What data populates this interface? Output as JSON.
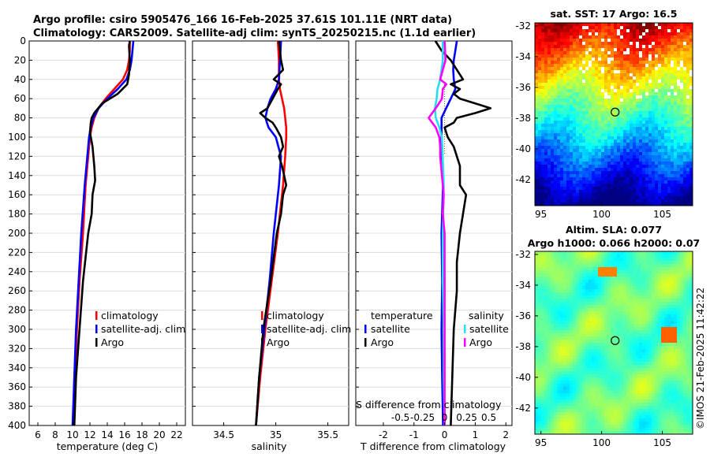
{
  "header": {
    "title_line1": "Argo profile: csiro 5905476_166 16-Feb-2025 37.61S 101.11E (NRT data)",
    "title_line2": "Climatology: CARS2009. Satellite-adj clim: synTS_20250215.nc (1.1d earlier)"
  },
  "copyright": "©IMOS 21-Feb-2025 11:42:22",
  "colors": {
    "red": "#ff0000",
    "blue": "#0000ff",
    "black": "#000000",
    "cyan": "#22e0f0",
    "magenta": "#ff00ff"
  },
  "chart_data": [
    {
      "type": "line",
      "name": "temperature",
      "xlabel": "temperature (deg C)",
      "ylabel": "",
      "xlim": [
        5,
        23
      ],
      "ylim": [
        0,
        400
      ],
      "xticks": [
        "6",
        "8",
        "10",
        "12",
        "14",
        "16",
        "18",
        "20",
        "22"
      ],
      "xtick_values": [
        6,
        8,
        10,
        12,
        14,
        16,
        18,
        20,
        22
      ],
      "yticks": [
        "0",
        "20",
        "40",
        "60",
        "80",
        "100",
        "120",
        "140",
        "160",
        "180",
        "200",
        "220",
        "240",
        "260",
        "280",
        "300",
        "320",
        "340",
        "360",
        "380",
        "400"
      ],
      "legend": [
        "climatology",
        "satellite-adj. clim",
        "Argo"
      ],
      "series": [
        {
          "name": "climatology",
          "color": "#ff0000",
          "depth": [
            0,
            10,
            20,
            30,
            40,
            50,
            60,
            70,
            80,
            90,
            100,
            150,
            200,
            250,
            300,
            350,
            400
          ],
          "values": [
            16.6,
            16.6,
            16.5,
            16.3,
            15.8,
            14.8,
            13.8,
            13.0,
            12.5,
            12.2,
            12.0,
            11.5,
            11.2,
            10.8,
            10.5,
            10.3,
            10.1
          ]
        },
        {
          "name": "satellite-adj. clim",
          "color": "#0000ff",
          "depth": [
            0,
            10,
            20,
            30,
            40,
            50,
            60,
            70,
            80,
            90,
            100,
            150,
            200,
            250,
            300,
            350,
            400
          ],
          "values": [
            17.0,
            16.9,
            16.8,
            16.6,
            16.2,
            15.2,
            14.0,
            13.0,
            12.4,
            12.1,
            11.9,
            11.4,
            11.0,
            10.7,
            10.4,
            10.2,
            10.0
          ]
        },
        {
          "name": "Argo",
          "color": "#000000",
          "depth": [
            0,
            5,
            20,
            35,
            45,
            55,
            65,
            75,
            80,
            85,
            95,
            110,
            130,
            145,
            160,
            180,
            200,
            250,
            300,
            350,
            400
          ],
          "values": [
            16.6,
            16.5,
            16.6,
            16.5,
            16.3,
            15.2,
            13.4,
            12.5,
            12.2,
            12.1,
            12.0,
            12.3,
            12.5,
            12.6,
            12.3,
            12.2,
            11.8,
            11.2,
            10.8,
            10.4,
            10.2
          ]
        }
      ]
    },
    {
      "type": "line",
      "name": "salinity",
      "xlabel": "salinity",
      "xlim": [
        34.2,
        35.7
      ],
      "ylim": [
        0,
        400
      ],
      "xticks": [
        "34.5",
        "35",
        "35.5"
      ],
      "xtick_values": [
        34.5,
        35,
        35.5
      ],
      "legend": [
        "climatology",
        "satellite-adj. clim",
        "Argo"
      ],
      "series": [
        {
          "name": "climatology",
          "color": "#ff0000",
          "depth": [
            0,
            20,
            40,
            50,
            60,
            70,
            80,
            90,
            100,
            120,
            150,
            200,
            250,
            300,
            350,
            400
          ],
          "values": [
            35.02,
            35.03,
            35.03,
            35.04,
            35.06,
            35.08,
            35.09,
            35.1,
            35.1,
            35.09,
            35.07,
            35.02,
            34.96,
            34.9,
            34.85,
            34.81
          ]
        },
        {
          "name": "satellite-adj. clim",
          "color": "#0000ff",
          "depth": [
            0,
            20,
            40,
            50,
            60,
            70,
            80,
            90,
            100,
            120,
            150,
            200,
            250,
            300,
            350,
            400
          ],
          "values": [
            35.05,
            35.04,
            35.03,
            35.0,
            34.95,
            34.92,
            34.9,
            34.93,
            35.0,
            35.05,
            35.03,
            34.98,
            34.94,
            34.89,
            34.84,
            34.81
          ]
        },
        {
          "name": "Argo",
          "color": "#000000",
          "depth": [
            0,
            10,
            20,
            30,
            40,
            45,
            50,
            60,
            70,
            75,
            80,
            85,
            90,
            100,
            110,
            120,
            130,
            140,
            150,
            160,
            180,
            200,
            250,
            300,
            350,
            400
          ],
          "values": [
            35.03,
            35.04,
            35.05,
            35.07,
            34.98,
            35.05,
            35.02,
            34.97,
            34.92,
            34.85,
            34.9,
            34.97,
            35.0,
            35.05,
            35.07,
            35.03,
            35.06,
            35.08,
            35.1,
            35.07,
            35.05,
            35.01,
            34.95,
            34.88,
            34.84,
            34.81
          ]
        }
      ]
    },
    {
      "type": "line",
      "name": "difference",
      "xlabel": "T difference from climatology",
      "xlabel_top": "S difference from climatology",
      "xlim": [
        -2.9,
        2.2
      ],
      "ylim": [
        0,
        400
      ],
      "xticks": [
        "-2",
        "-1",
        "0",
        "1",
        "2"
      ],
      "xtick_values": [
        -2,
        -1,
        0,
        1,
        2
      ],
      "sticks": [
        "-0.5",
        "-0.25",
        "0",
        "0.25",
        "0.5"
      ],
      "legend_temperature": "temperature",
      "legend_salinity": "salinity",
      "legend": [
        "satellite",
        "Argo",
        "satellite",
        "Argo"
      ],
      "series": [
        {
          "name": "T satellite",
          "color": "#0000ff",
          "depth": [
            0,
            10,
            20,
            30,
            40,
            50,
            60,
            70,
            80,
            100,
            150,
            200,
            250,
            300,
            350,
            400
          ],
          "values": [
            0.4,
            0.35,
            0.3,
            0.28,
            0.3,
            0.35,
            0.2,
            0.05,
            -0.1,
            -0.1,
            -0.05,
            -0.1,
            -0.08,
            -0.1,
            -0.08,
            -0.05
          ]
        },
        {
          "name": "T Argo",
          "color": "#000000",
          "depth": [
            0,
            10,
            20,
            30,
            40,
            45,
            50,
            55,
            60,
            65,
            70,
            75,
            80,
            85,
            90,
            100,
            110,
            130,
            150,
            160,
            180,
            200,
            230,
            260,
            300,
            350,
            400
          ],
          "values": [
            -0.3,
            -0.1,
            0.2,
            0.4,
            0.6,
            0.2,
            0.5,
            0.3,
            0.5,
            1.0,
            1.5,
            1.0,
            0.4,
            0.3,
            0.0,
            0.1,
            0.3,
            0.5,
            0.5,
            0.7,
            0.6,
            0.5,
            0.4,
            0.4,
            0.3,
            0.25,
            0.2
          ]
        },
        {
          "name": "S satellite",
          "color": "#22e0f0",
          "depth": [
            0,
            20,
            40,
            50,
            60,
            70,
            80,
            90,
            100,
            150,
            200,
            250,
            300,
            350,
            400
          ],
          "values": [
            -0.02,
            -0.02,
            -0.05,
            -0.08,
            -0.09,
            -0.11,
            -0.1,
            -0.06,
            -0.03,
            -0.01,
            -0.02,
            -0.02,
            -0.01,
            -0.01,
            0.0
          ]
        },
        {
          "name": "S Argo",
          "color": "#ff00ff",
          "depth": [
            0,
            20,
            30,
            40,
            45,
            50,
            60,
            70,
            80,
            90,
            100,
            110,
            120,
            140,
            160,
            180,
            200,
            250,
            300,
            350,
            400
          ],
          "values": [
            0.0,
            0.01,
            -0.02,
            -0.05,
            0.02,
            -0.02,
            -0.03,
            -0.1,
            -0.18,
            -0.1,
            -0.06,
            -0.05,
            -0.05,
            -0.03,
            -0.01,
            -0.02,
            0.0,
            0.0,
            0.0,
            0.0,
            0.0
          ]
        }
      ]
    },
    {
      "type": "heatmap",
      "name": "sst_map",
      "title": "sat. SST: 17 Argo: 16.5",
      "xticks": [
        "95",
        "100",
        "105"
      ],
      "xtick_values": [
        95,
        100,
        105
      ],
      "yticks": [
        "-32",
        "-34",
        "-36",
        "-38",
        "-40",
        "-42"
      ],
      "ytick_values": [
        -32,
        -34,
        -36,
        -38,
        -40,
        -42
      ],
      "xlim": [
        94.5,
        107.5
      ],
      "ylim": [
        -43.7,
        -31.8
      ],
      "marker": {
        "lon": 101.11,
        "lat": -37.61
      }
    },
    {
      "type": "heatmap",
      "name": "sla_map",
      "title_line1": "Altim. SLA: 0.077",
      "title_line2": "Argo h1000: 0.066 h2000: 0.07",
      "xticks": [
        "95",
        "100",
        "105"
      ],
      "xtick_values": [
        95,
        100,
        105
      ],
      "yticks": [
        "-32",
        "-34",
        "-36",
        "-38",
        "-40",
        "-42"
      ],
      "ytick_values": [
        -32,
        -34,
        -36,
        -38,
        -40,
        -42
      ],
      "xlim": [
        94.5,
        107.5
      ],
      "ylim": [
        -43.7,
        -31.8
      ],
      "marker": {
        "lon": 101.11,
        "lat": -37.61
      }
    }
  ]
}
